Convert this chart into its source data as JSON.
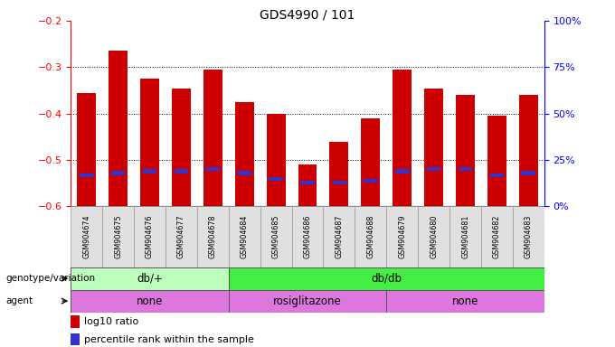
{
  "title": "GDS4990 / 101",
  "samples": [
    "GSM904674",
    "GSM904675",
    "GSM904676",
    "GSM904677",
    "GSM904678",
    "GSM904684",
    "GSM904685",
    "GSM904686",
    "GSM904687",
    "GSM904688",
    "GSM904679",
    "GSM904680",
    "GSM904681",
    "GSM904682",
    "GSM904683"
  ],
  "log10_ratio": [
    -0.355,
    -0.265,
    -0.325,
    -0.345,
    -0.305,
    -0.375,
    -0.4,
    -0.51,
    -0.46,
    -0.41,
    -0.305,
    -0.345,
    -0.36,
    -0.405,
    -0.36
  ],
  "percentile_rank": [
    17,
    18,
    19,
    19,
    20,
    18,
    15,
    13,
    13,
    14,
    19,
    20,
    20,
    17,
    18
  ],
  "ylim_left": [
    -0.6,
    -0.2
  ],
  "ylim_right": [
    0,
    100
  ],
  "yticks_left": [
    -0.6,
    -0.5,
    -0.4,
    -0.3,
    -0.2
  ],
  "yticks_right": [
    0,
    25,
    50,
    75,
    100
  ],
  "ytick_labels_right": [
    "0%",
    "25%",
    "50%",
    "75%",
    "100%"
  ],
  "grid_yticks": [
    -0.5,
    -0.4,
    -0.3
  ],
  "bar_color": "#cc0000",
  "marker_color": "#3333cc",
  "bg_color": "#ffffff",
  "genotype_groups": [
    {
      "label": "db/+",
      "start": 0,
      "end": 5,
      "color": "#bbffbb"
    },
    {
      "label": "db/db",
      "start": 5,
      "end": 15,
      "color": "#44ee44"
    }
  ],
  "agent_groups": [
    {
      "label": "none",
      "start": 0,
      "end": 5,
      "color": "#dd77dd"
    },
    {
      "label": "rosiglitazone",
      "start": 5,
      "end": 10,
      "color": "#dd77dd"
    },
    {
      "label": "none",
      "start": 10,
      "end": 15,
      "color": "#dd77dd"
    }
  ]
}
